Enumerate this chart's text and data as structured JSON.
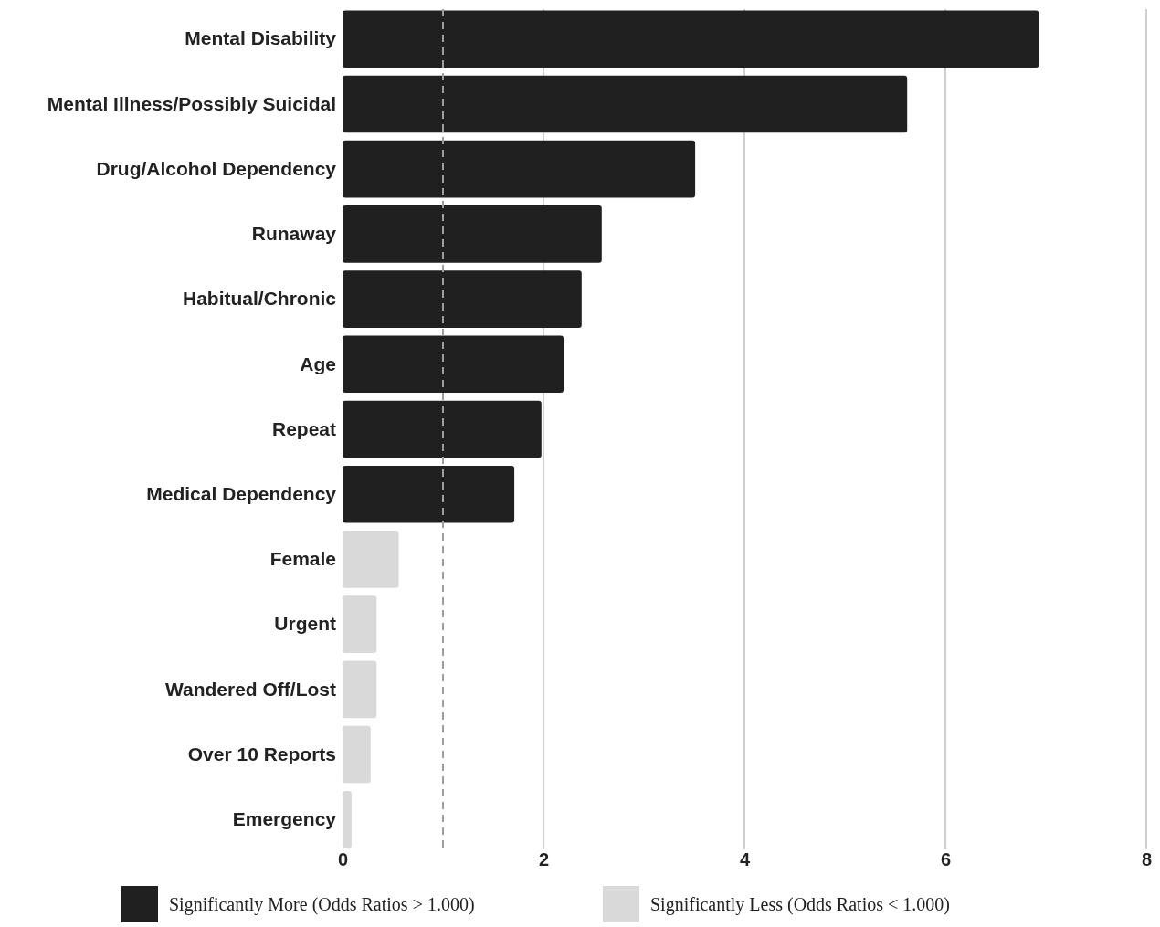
{
  "chart_data": {
    "type": "bar",
    "orientation": "horizontal",
    "categories": [
      "Mental Disability",
      "Mental Illness/Possibly Suicidal",
      "Drug/Alcohol Dependency",
      "Runaway",
      "Habitual/Chronic",
      "Age",
      "Repeat",
      "Medical Dependency",
      "Female",
      "Urgent",
      "Wandered Off/Lost",
      "Over 10 Reports",
      "Emergency"
    ],
    "series": [
      {
        "name": "Significantly More (Odds Ratios > 1.000)",
        "color": "#202020",
        "values": [
          6.93,
          5.62,
          3.51,
          2.58,
          2.38,
          2.2,
          1.98,
          1.71,
          null,
          null,
          null,
          null,
          null
        ]
      },
      {
        "name": "Significantly Less (Odds Ratios < 1.000)",
        "color": "#d9d9d9",
        "values": [
          null,
          null,
          null,
          null,
          null,
          null,
          null,
          null,
          0.56,
          0.34,
          0.34,
          0.28,
          0.09
        ]
      }
    ],
    "xlim": [
      0,
      8
    ],
    "xticks": [
      0,
      2,
      4,
      6,
      8
    ],
    "grid": "x",
    "legend": "bottom",
    "ref_lines": [
      {
        "axis": "x",
        "value": 1,
        "color": "#9e9e9e",
        "line_style": "dashed"
      }
    ]
  }
}
